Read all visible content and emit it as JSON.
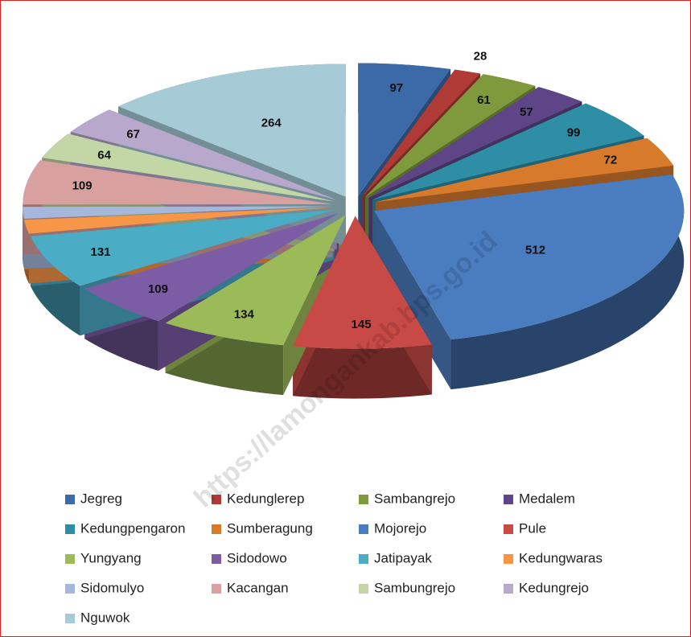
{
  "chart_data": {
    "type": "pie3d",
    "watermark": "https://lamongankab.bps.go.id",
    "categories": [
      "Jegreg",
      "Kedunglerep",
      "Sambangrejo",
      "Medalem",
      "Kedungpengaron",
      "Sumberagung",
      "Mojorejo",
      "Pule",
      "Yungyang",
      "Sidodowo",
      "Jatipayak",
      "Kedungwaras",
      "Sidomulyo",
      "Kacangan",
      "Sambungrejo",
      "Kedungrejo",
      "Nguwok"
    ],
    "values": [
      97,
      28,
      61,
      57,
      99,
      72,
      512,
      145,
      134,
      109,
      131,
      34,
      29,
      109,
      64,
      67,
      264
    ],
    "colors": [
      "#3c6aa8",
      "#b03a36",
      "#7f9a3c",
      "#5e4588",
      "#2e8ea6",
      "#d87a2c",
      "#4a7cc0",
      "#c84a46",
      "#9bbb59",
      "#7b5ca5",
      "#4bacc6",
      "#f79646",
      "#a5b8dc",
      "#d9a0a0",
      "#c3d6a5",
      "#b7a8cc",
      "#a6cbd6"
    ],
    "legend": "bottom"
  }
}
